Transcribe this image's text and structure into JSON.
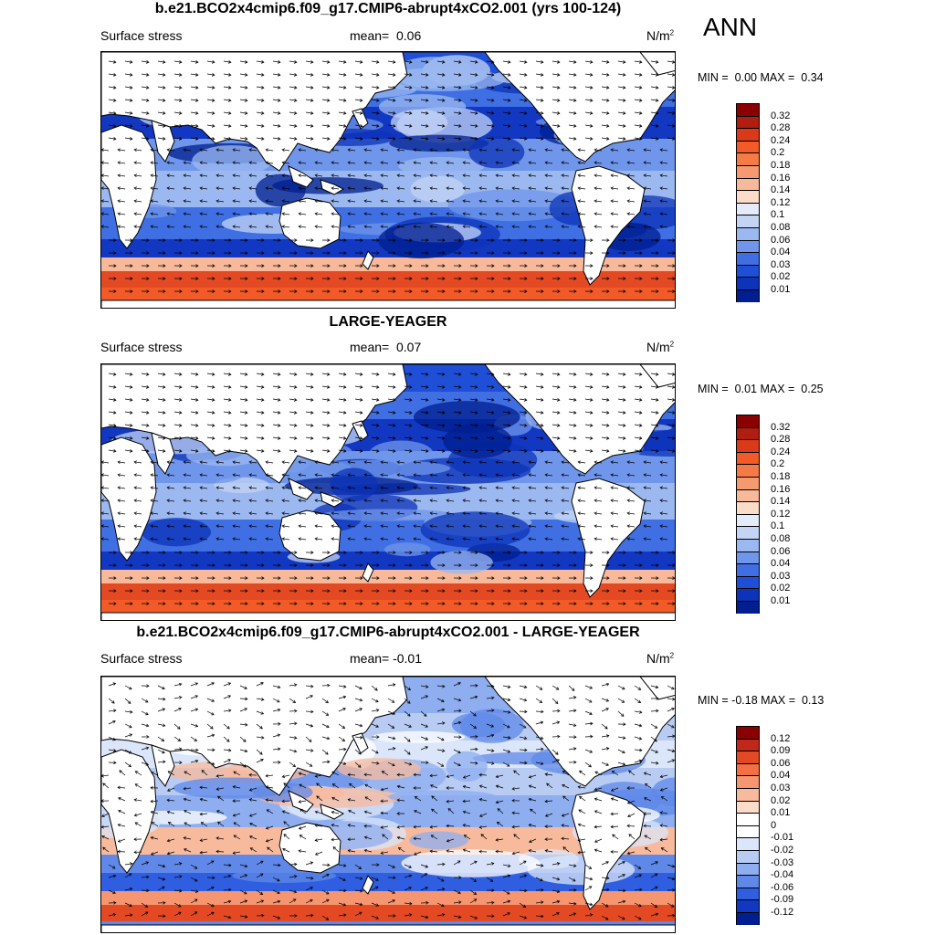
{
  "season": "ANN",
  "panels": [
    {
      "title": "b.e21.BCO2x4cmip6.f09_g17.CMIP6-abrupt4xCO2.001 (yrs 100-124)",
      "variable": "Surface stress",
      "mean_label": "mean=",
      "mean_value": "0.06",
      "units": "N/m",
      "units_sup": "2",
      "min_label": "MIN =",
      "min_value": "0.00",
      "max_label": "MAX =",
      "max_value": "0.34",
      "colorbar_ticks": [
        "0.32",
        "0.28",
        "0.24",
        "0.2",
        "0.18",
        "0.16",
        "0.14",
        "0.12",
        "0.1",
        "0.08",
        "0.06",
        "0.04",
        "0.03",
        "0.02",
        "0.01"
      ]
    },
    {
      "title": "LARGE-YEAGER",
      "variable": "Surface stress",
      "mean_label": "mean=",
      "mean_value": "0.07",
      "units": "N/m",
      "units_sup": "2",
      "min_label": "MIN =",
      "min_value": "0.01",
      "max_label": "MAX =",
      "max_value": "0.25",
      "colorbar_ticks": [
        "0.32",
        "0.28",
        "0.24",
        "0.2",
        "0.18",
        "0.16",
        "0.14",
        "0.12",
        "0.1",
        "0.08",
        "0.06",
        "0.04",
        "0.03",
        "0.02",
        "0.01"
      ]
    },
    {
      "title": "b.e21.BCO2x4cmip6.f09_g17.CMIP6-abrupt4xCO2.001 - LARGE-YEAGER",
      "variable": "Surface stress",
      "mean_label": "mean=",
      "mean_value": "-0.01",
      "units": "N/m",
      "units_sup": "2",
      "min_label": "MIN =",
      "min_value": "-0.18",
      "max_label": "MAX =",
      "max_value": "0.13",
      "colorbar_ticks": [
        "0.12",
        "0.09",
        "0.06",
        "0.04",
        "0.03",
        "0.02",
        "0.01",
        "0",
        "-0.01",
        "-0.02",
        "-0.03",
        "-0.04",
        "-0.06",
        "-0.09",
        "-0.12"
      ]
    }
  ],
  "colors": {
    "scale_abs": [
      "#8b0000",
      "#b01e10",
      "#d93a1a",
      "#f25a28",
      "#f47a48",
      "#f59a70",
      "#f8b99a",
      "#fbdcc8",
      "#e4ecfb",
      "#c3d4f5",
      "#9bb8f0",
      "#6f96ea",
      "#3f6fe3",
      "#1f4fd6",
      "#0c33b8",
      "#001e8f"
    ],
    "scale_diff": [
      "#8b0000",
      "#c0281a",
      "#e34a24",
      "#f27044",
      "#f59670",
      "#f8ba9c",
      "#fbdcc8",
      "#ffffff",
      "#ffffff",
      "#dbe6fa",
      "#b8ccf3",
      "#8eaef0",
      "#5f88e8",
      "#2f5fe0",
      "#1238c2",
      "#001e8f"
    ],
    "land": "#ffffff",
    "outline": "#000000"
  }
}
